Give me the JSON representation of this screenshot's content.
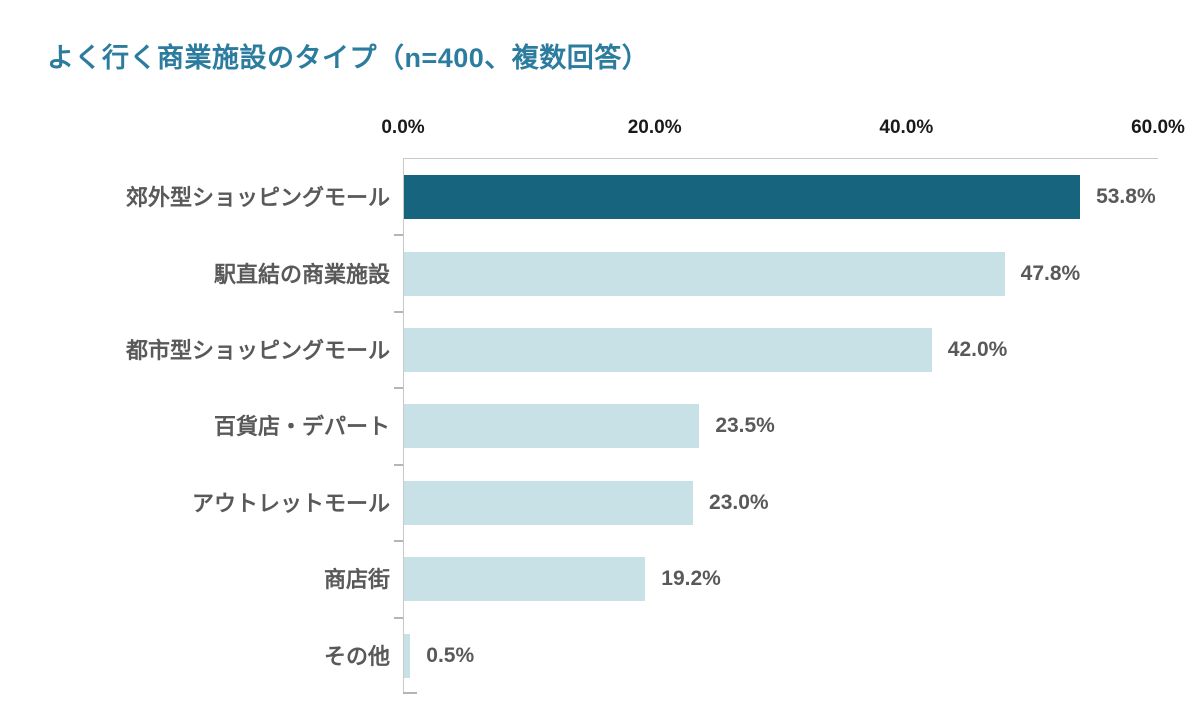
{
  "title": "よく行く商業施設のタイプ（n=400、複数回答）",
  "chart_data": {
    "type": "bar",
    "orientation": "horizontal",
    "title": "よく行く商業施設のタイプ（n=400、複数回答）",
    "categories": [
      "郊外型ショッピングモール",
      "駅直結の商業施設",
      "都市型ショッピングモール",
      "百貨店・デパート",
      "アウトレットモール",
      "商店街",
      "その他"
    ],
    "values": [
      53.8,
      47.8,
      42.0,
      23.5,
      23.0,
      19.2,
      0.5
    ],
    "value_labels": [
      "53.8%",
      "47.8%",
      "42.0%",
      "23.5%",
      "23.0%",
      "19.2%",
      "0.5%"
    ],
    "x_ticks": [
      0,
      20,
      40,
      60
    ],
    "x_tick_labels": [
      "0.0%",
      "20.0%",
      "40.0%",
      "60.0%"
    ],
    "xlim": [
      0,
      60
    ],
    "highlight_index": 0,
    "grid": false,
    "legend": false,
    "colors": {
      "highlight_bar": "#16647e",
      "normal_bar": "#c8e1e6",
      "title_text": "#2b7c9e",
      "label_text": "#595959",
      "tick_text": "#1a1a1a",
      "axis_line": "#c9c9c9"
    }
  }
}
